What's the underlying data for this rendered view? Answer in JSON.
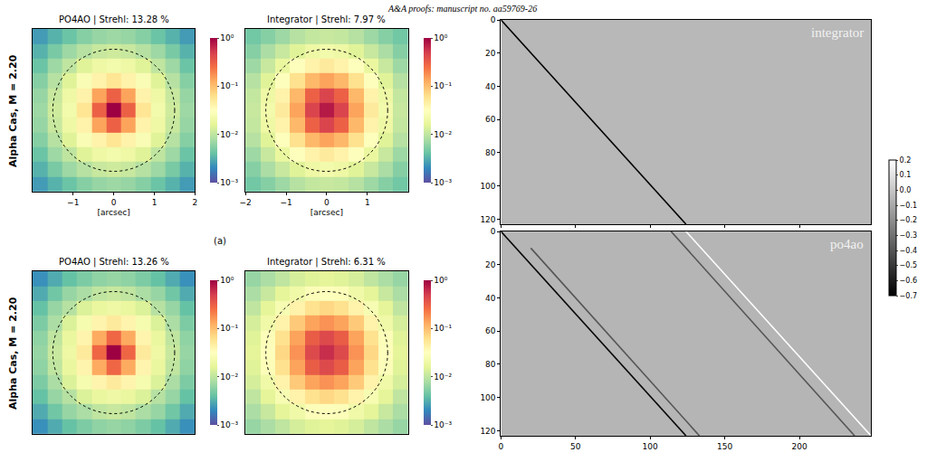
{
  "header": "A&A proofs: manuscript no. aa59769-26",
  "panel_label": "(a)",
  "row_labels": [
    "Alpha Cas, M = 2.20",
    "Alpha Cas, M = 2.20"
  ],
  "matrix_colorbar": {
    "range": [
      -0.7,
      0.2
    ],
    "ticks": [
      0.2,
      0.1,
      {
        "value": 0,
        "label": "0.0"
      },
      {
        "value": -0.1,
        "label": "−0.1"
      },
      {
        "value": -0.2,
        "label": "−0.2"
      },
      {
        "value": -0.3,
        "label": "−0.3"
      },
      {
        "value": -0.4,
        "label": "−0.4"
      },
      {
        "value": -0.5,
        "label": "−0.5"
      },
      {
        "value": -0.6,
        "label": "−0.6"
      },
      {
        "value": -0.7,
        "label": "−0.7"
      }
    ]
  },
  "chart_data": [
    {
      "type": "heatmap",
      "title": "PO4AO | Strehl: 13.28 %",
      "x_label": "[arcsec]",
      "log": true,
      "color": "Spectral_r",
      "xlim": [
        -2,
        2
      ],
      "ylim": [
        -2,
        2
      ],
      "xticks": [
        {
          "value": -1,
          "label": "−1"
        },
        0,
        1,
        2
      ],
      "tick_labels": "x",
      "x": [
        -1.82,
        -1.45,
        -1.09,
        -0.73,
        -0.36,
        0,
        0.36,
        0.73,
        1.09,
        1.45,
        1.82
      ],
      "y": [
        -1.82,
        -1.45,
        -1.09,
        -0.73,
        -0.36,
        0,
        0.36,
        0.73,
        1.09,
        1.45,
        1.82
      ],
      "cells": [
        [
          0.0025,
          0.0033,
          0.0042,
          0.0055,
          0.0065,
          0.007,
          0.0065,
          0.0055,
          0.0042,
          0.0033,
          0.0025
        ],
        [
          0.0033,
          0.0048,
          0.007,
          0.009,
          0.011,
          0.012,
          0.011,
          0.009,
          0.007,
          0.0048,
          0.0033
        ],
        [
          0.0042,
          0.007,
          0.01,
          0.015,
          0.02,
          0.022,
          0.02,
          0.015,
          0.01,
          0.007,
          0.0042
        ],
        [
          0.0055,
          0.009,
          0.015,
          0.026,
          0.042,
          0.055,
          0.042,
          0.026,
          0.015,
          0.009,
          0.0055
        ],
        [
          0.0065,
          0.011,
          0.02,
          0.042,
          0.14,
          0.3,
          0.14,
          0.042,
          0.02,
          0.011,
          0.0065
        ],
        [
          0.007,
          0.012,
          0.022,
          0.055,
          0.3,
          1,
          0.3,
          0.055,
          0.022,
          0.012,
          0.007
        ],
        [
          0.0065,
          0.011,
          0.02,
          0.042,
          0.14,
          0.3,
          0.14,
          0.042,
          0.02,
          0.011,
          0.0065
        ],
        [
          0.0055,
          0.009,
          0.015,
          0.026,
          0.042,
          0.055,
          0.042,
          0.026,
          0.015,
          0.009,
          0.0055
        ],
        [
          0.0042,
          0.007,
          0.01,
          0.015,
          0.02,
          0.022,
          0.02,
          0.015,
          0.01,
          0.007,
          0.0042
        ],
        [
          0.0033,
          0.0048,
          0.007,
          0.009,
          0.011,
          0.012,
          0.011,
          0.009,
          0.007,
          0.0048,
          0.0033
        ],
        [
          0.0025,
          0.0033,
          0.0042,
          0.0055,
          0.0065,
          0.007,
          0.0065,
          0.0055,
          0.0042,
          0.0033,
          0.0025
        ]
      ],
      "colorbar": {
        "range": [
          0.001,
          1
        ],
        "ticks": [
          {
            "value": 1,
            "label": "10⁰"
          },
          {
            "value": 0.1,
            "label": "10⁻¹"
          },
          {
            "value": 0.01,
            "label": "10⁻²"
          },
          {
            "value": 0.001,
            "label": "10⁻³"
          }
        ]
      },
      "circle": {
        "center": [
          0,
          0
        ],
        "radius": 1.5,
        "line_style": "dotted"
      }
    },
    {
      "type": "heatmap",
      "title": "Integrator | Strehl: 7.97 %",
      "x_label": "[arcsec]",
      "log": true,
      "color": "Spectral_r",
      "xlim": [
        -2,
        2
      ],
      "ylim": [
        -2,
        2
      ],
      "xticks": [
        {
          "value": -2,
          "label": "−2"
        },
        {
          "value": -1,
          "label": "−1"
        },
        0,
        1
      ],
      "tick_labels": "x",
      "x": [
        -1.82,
        -1.45,
        -1.09,
        -0.73,
        -0.36,
        0,
        0.36,
        0.73,
        1.09,
        1.45,
        1.82
      ],
      "y": [
        -1.82,
        -1.45,
        -1.09,
        -0.73,
        -0.36,
        0,
        0.36,
        0.73,
        1.09,
        1.45,
        1.82
      ],
      "cells": [
        [
          0.0045,
          0.0055,
          0.007,
          0.009,
          0.0105,
          0.011,
          0.0105,
          0.009,
          0.007,
          0.0055,
          0.0045
        ],
        [
          0.0055,
          0.008,
          0.011,
          0.015,
          0.02,
          0.022,
          0.02,
          0.015,
          0.011,
          0.008,
          0.0055
        ],
        [
          0.007,
          0.011,
          0.018,
          0.03,
          0.042,
          0.05,
          0.042,
          0.03,
          0.018,
          0.011,
          0.007
        ],
        [
          0.009,
          0.015,
          0.03,
          0.06,
          0.11,
          0.14,
          0.11,
          0.06,
          0.03,
          0.015,
          0.009
        ],
        [
          0.0105,
          0.02,
          0.042,
          0.11,
          0.3,
          0.45,
          0.3,
          0.11,
          0.042,
          0.02,
          0.0105
        ],
        [
          0.011,
          0.022,
          0.05,
          0.14,
          0.45,
          0.75,
          0.45,
          0.14,
          0.05,
          0.022,
          0.011
        ],
        [
          0.0105,
          0.02,
          0.042,
          0.11,
          0.3,
          0.45,
          0.3,
          0.11,
          0.042,
          0.02,
          0.0105
        ],
        [
          0.009,
          0.015,
          0.03,
          0.06,
          0.11,
          0.14,
          0.11,
          0.06,
          0.03,
          0.015,
          0.009
        ],
        [
          0.007,
          0.011,
          0.018,
          0.03,
          0.042,
          0.05,
          0.042,
          0.03,
          0.018,
          0.011,
          0.007
        ],
        [
          0.0055,
          0.008,
          0.011,
          0.015,
          0.02,
          0.022,
          0.02,
          0.015,
          0.011,
          0.008,
          0.0055
        ],
        [
          0.0045,
          0.0055,
          0.007,
          0.009,
          0.0105,
          0.011,
          0.0105,
          0.009,
          0.007,
          0.0055,
          0.0045
        ]
      ],
      "colorbar": {
        "range": [
          0.001,
          1
        ],
        "ticks": [
          {
            "value": 1,
            "label": "10⁰"
          },
          {
            "value": 0.1,
            "label": "10⁻¹"
          },
          {
            "value": 0.01,
            "label": "10⁻²"
          },
          {
            "value": 0.001,
            "label": "10⁻³"
          }
        ]
      },
      "circle": {
        "center": [
          0,
          0
        ],
        "radius": 1.5,
        "line_style": "dotted"
      }
    },
    {
      "type": "heatmap",
      "title": "PO4AO | Strehl: 13.26 %",
      "log": true,
      "color": "Spectral_r",
      "xlim": [
        -2,
        2
      ],
      "ylim": [
        -2,
        2
      ],
      "tick_labels": false,
      "x": [
        -1.82,
        -1.45,
        -1.09,
        -0.73,
        -0.36,
        0,
        0.36,
        0.73,
        1.09,
        1.45,
        1.82
      ],
      "y": [
        -1.82,
        -1.45,
        -1.09,
        -0.73,
        -0.36,
        0,
        0.36,
        0.73,
        1.09,
        1.45,
        1.82
      ],
      "cells": [
        [
          0.0022,
          0.003,
          0.004,
          0.005,
          0.006,
          0.0065,
          0.006,
          0.005,
          0.004,
          0.003,
          0.0022
        ],
        [
          0.003,
          0.0044,
          0.0065,
          0.008,
          0.01,
          0.011,
          0.01,
          0.008,
          0.0065,
          0.0044,
          0.003
        ],
        [
          0.004,
          0.0065,
          0.009,
          0.014,
          0.018,
          0.02,
          0.018,
          0.014,
          0.009,
          0.0065,
          0.004
        ],
        [
          0.005,
          0.008,
          0.014,
          0.024,
          0.04,
          0.05,
          0.04,
          0.024,
          0.014,
          0.008,
          0.005
        ],
        [
          0.006,
          0.01,
          0.018,
          0.04,
          0.13,
          0.28,
          0.13,
          0.04,
          0.018,
          0.01,
          0.006
        ],
        [
          0.0065,
          0.011,
          0.02,
          0.05,
          0.28,
          1,
          0.28,
          0.05,
          0.02,
          0.011,
          0.0065
        ],
        [
          0.006,
          0.01,
          0.018,
          0.04,
          0.13,
          0.28,
          0.13,
          0.04,
          0.018,
          0.01,
          0.006
        ],
        [
          0.005,
          0.008,
          0.014,
          0.024,
          0.04,
          0.05,
          0.04,
          0.024,
          0.014,
          0.008,
          0.005
        ],
        [
          0.004,
          0.0065,
          0.009,
          0.014,
          0.018,
          0.02,
          0.018,
          0.014,
          0.009,
          0.0065,
          0.004
        ],
        [
          0.003,
          0.0044,
          0.0065,
          0.008,
          0.01,
          0.011,
          0.01,
          0.008,
          0.0065,
          0.0044,
          0.003
        ],
        [
          0.0022,
          0.003,
          0.004,
          0.005,
          0.006,
          0.0065,
          0.006,
          0.005,
          0.004,
          0.003,
          0.0022
        ]
      ],
      "colorbar": {
        "range": [
          0.001,
          1
        ],
        "ticks": [
          {
            "value": 1,
            "label": "10⁰"
          },
          {
            "value": 0.1,
            "label": "10⁻¹"
          },
          {
            "value": 0.01,
            "label": "10⁻²"
          },
          {
            "value": 0.001,
            "label": "10⁻³"
          }
        ]
      },
      "circle": {
        "center": [
          0,
          0
        ],
        "radius": 1.5,
        "line_style": "dotted"
      }
    },
    {
      "type": "heatmap",
      "title": "Integrator | Strehl: 6.31 %",
      "log": true,
      "color": "Spectral_r",
      "xlim": [
        -2,
        2
      ],
      "ylim": [
        -2,
        2
      ],
      "tick_labels": false,
      "x": [
        -1.82,
        -1.45,
        -1.09,
        -0.73,
        -0.36,
        0,
        0.36,
        0.73,
        1.09,
        1.45,
        1.82
      ],
      "y": [
        -1.82,
        -1.45,
        -1.09,
        -0.73,
        -0.36,
        0,
        0.36,
        0.73,
        1.09,
        1.45,
        1.82
      ],
      "cells": [
        [
          0.0065,
          0.008,
          0.01,
          0.013,
          0.015,
          0.016,
          0.015,
          0.013,
          0.01,
          0.008,
          0.0065
        ],
        [
          0.008,
          0.011,
          0.016,
          0.021,
          0.028,
          0.03,
          0.028,
          0.021,
          0.016,
          0.011,
          0.008
        ],
        [
          0.01,
          0.016,
          0.025,
          0.042,
          0.06,
          0.07,
          0.06,
          0.042,
          0.025,
          0.016,
          0.01
        ],
        [
          0.013,
          0.021,
          0.042,
          0.085,
          0.14,
          0.17,
          0.14,
          0.085,
          0.042,
          0.021,
          0.013
        ],
        [
          0.015,
          0.028,
          0.06,
          0.14,
          0.32,
          0.42,
          0.32,
          0.14,
          0.06,
          0.028,
          0.015
        ],
        [
          0.016,
          0.03,
          0.07,
          0.17,
          0.42,
          0.6,
          0.42,
          0.17,
          0.07,
          0.03,
          0.016
        ],
        [
          0.015,
          0.028,
          0.06,
          0.14,
          0.32,
          0.42,
          0.32,
          0.14,
          0.06,
          0.028,
          0.015
        ],
        [
          0.013,
          0.021,
          0.042,
          0.085,
          0.14,
          0.17,
          0.14,
          0.085,
          0.042,
          0.021,
          0.013
        ],
        [
          0.01,
          0.016,
          0.025,
          0.042,
          0.06,
          0.07,
          0.06,
          0.042,
          0.025,
          0.016,
          0.01
        ],
        [
          0.008,
          0.011,
          0.016,
          0.021,
          0.028,
          0.03,
          0.028,
          0.021,
          0.016,
          0.011,
          0.008
        ],
        [
          0.0065,
          0.008,
          0.01,
          0.013,
          0.015,
          0.016,
          0.015,
          0.013,
          0.01,
          0.008,
          0.0065
        ]
      ],
      "colorbar": {
        "range": [
          0.001,
          1
        ],
        "ticks": [
          {
            "value": 1,
            "label": "10⁰"
          },
          {
            "value": 0.1,
            "label": "10⁻¹"
          },
          {
            "value": 0.01,
            "label": "10⁻²"
          },
          {
            "value": 0.001,
            "label": "10⁻³"
          }
        ]
      },
      "circle": {
        "center": [
          0,
          0
        ],
        "radius": 1.5,
        "line_style": "dotted"
      }
    },
    {
      "type": "matrix",
      "annotation": "integrator",
      "color": "Greys",
      "xlim": [
        0,
        248
      ],
      "ylim": [
        123,
        0
      ],
      "xticks": [
        0,
        50,
        100,
        150,
        200
      ],
      "yticks": [
        0,
        20,
        40,
        60,
        80,
        100,
        120
      ],
      "tick_labels": "y",
      "background": -0.05,
      "diagonals": [
        {
          "x": [
            0,
            124
          ],
          "y": [
            0,
            123
          ],
          "value": -0.7
        }
      ]
    },
    {
      "type": "matrix",
      "annotation": "po4ao",
      "color": "Greys",
      "xlim": [
        0,
        248
      ],
      "ylim": [
        123,
        0
      ],
      "xticks": [
        0,
        50,
        100,
        150,
        200
      ],
      "yticks": [
        0,
        20,
        40,
        60,
        80,
        100,
        120
      ],
      "background": -0.06,
      "diagonals": [
        {
          "x": [
            0,
            124
          ],
          "y": [
            0,
            123
          ],
          "value": -0.7
        },
        {
          "x": [
            20,
            133
          ],
          "y": [
            10,
            123
          ],
          "value": -0.4
        },
        {
          "x": [
            114,
            237
          ],
          "y": [
            0,
            123
          ],
          "value": -0.4
        },
        {
          "x": [
            124,
            248
          ],
          "y": [
            0,
            123
          ],
          "value": 0.2
        }
      ]
    }
  ]
}
